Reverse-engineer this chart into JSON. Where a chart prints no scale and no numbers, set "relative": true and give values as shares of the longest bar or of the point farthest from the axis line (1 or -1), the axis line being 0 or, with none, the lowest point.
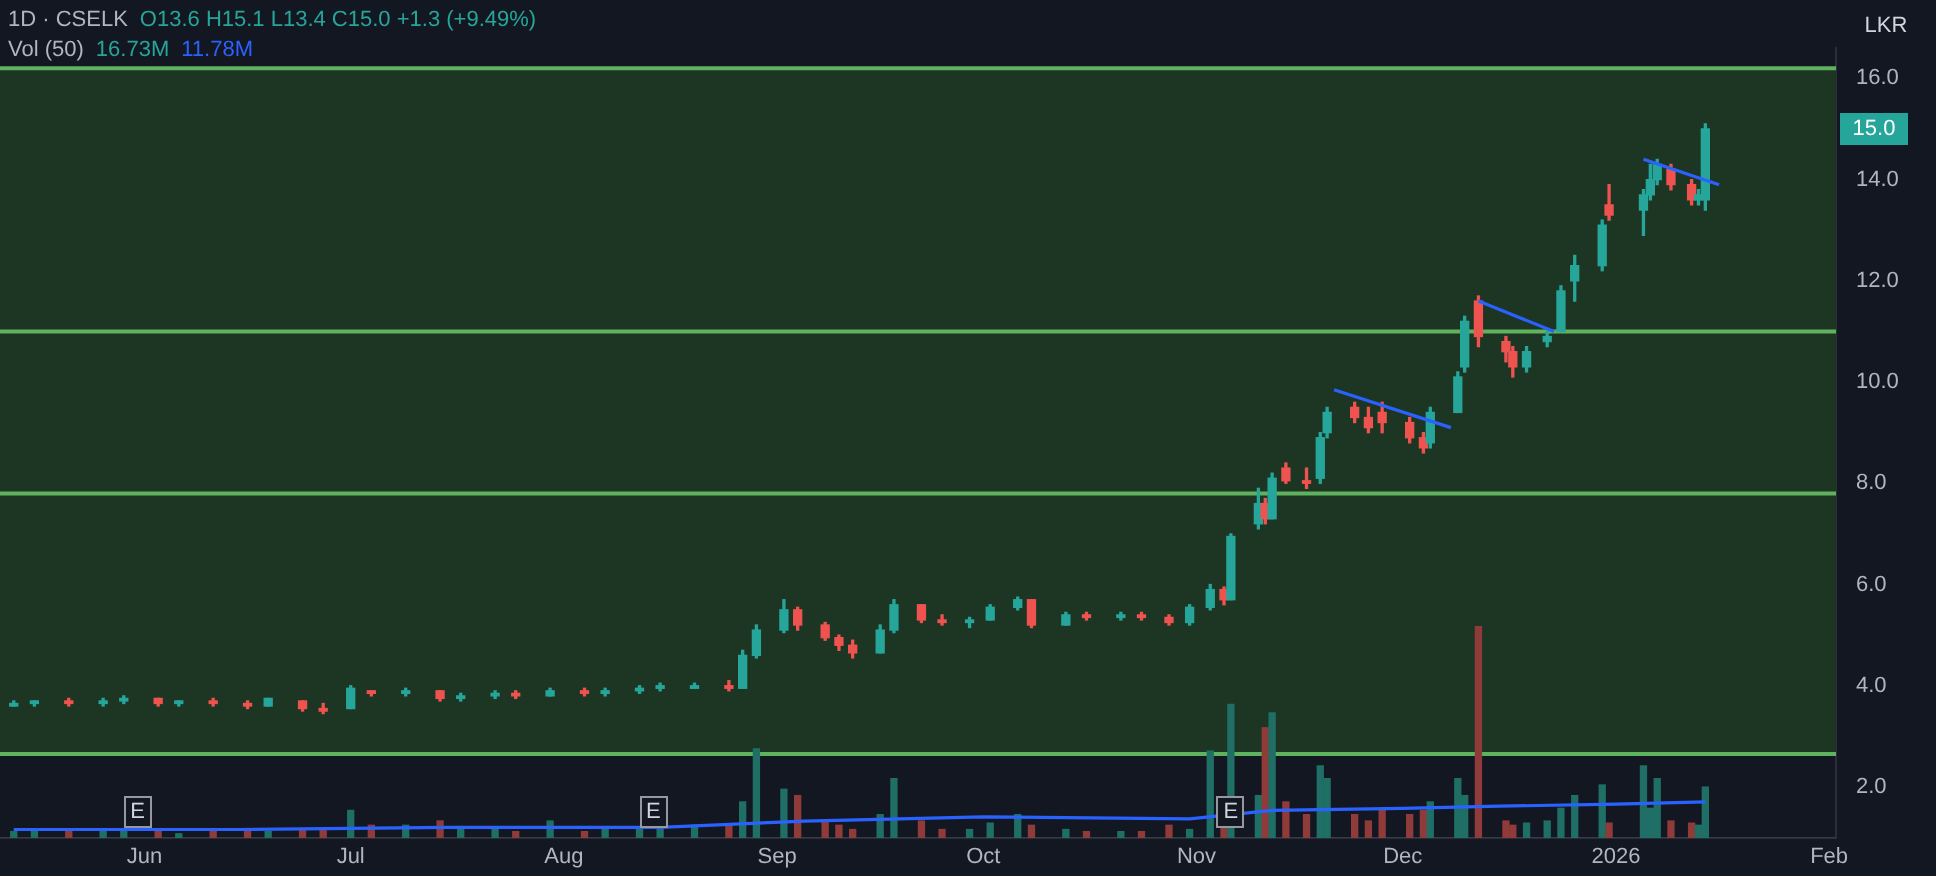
{
  "chart_data": [
    {
      "type": "candlestick",
      "title": "1D · CSELK",
      "subtitle": "O13.6 H15.1 L13.4 C15.0 +1.3 (+9.49%)",
      "ylabel": "LKR",
      "annotations": [
        {
          "text": "E",
          "x": "2025-05-31",
          "y": 1.5
        },
        {
          "text": "E",
          "x": "2025-08-14",
          "y": 1.5
        },
        {
          "text": "E",
          "x": "2025-11-06",
          "y": 1.5
        },
        {
          "text": "15.0",
          "y": 15.0
        }
      ],
      "x": [
        "2025-05-13",
        "2025-05-16",
        "2025-05-21",
        "2025-05-26",
        "2025-05-29",
        "2025-06-03",
        "2025-06-06",
        "2025-06-11",
        "2025-06-16",
        "2025-06-19",
        "2025-06-24",
        "2025-06-27",
        "2025-07-01",
        "2025-07-04",
        "2025-07-09",
        "2025-07-14",
        "2025-07-17",
        "2025-07-22",
        "2025-07-25",
        "2025-07-30",
        "2025-08-04",
        "2025-08-07",
        "2025-08-12",
        "2025-08-15",
        "2025-08-20",
        "2025-08-25",
        "2025-08-27",
        "2025-08-29",
        "2025-09-02",
        "2025-09-04",
        "2025-09-08",
        "2025-09-10",
        "2025-09-12",
        "2025-09-16",
        "2025-09-18",
        "2025-09-22",
        "2025-09-25",
        "2025-09-29",
        "2025-10-02",
        "2025-10-06",
        "2025-10-08",
        "2025-10-13",
        "2025-10-16",
        "2025-10-21",
        "2025-10-24",
        "2025-10-28",
        "2025-10-31",
        "2025-11-03",
        "2025-11-05",
        "2025-11-06",
        "2025-11-10",
        "2025-11-11",
        "2025-11-12",
        "2025-11-14",
        "2025-11-17",
        "2025-11-19",
        "2025-11-20",
        "2025-11-24",
        "2025-11-26",
        "2025-11-28",
        "2025-12-02",
        "2025-12-04",
        "2025-12-05",
        "2025-12-09",
        "2025-12-10",
        "2025-12-12",
        "2025-12-16",
        "2025-12-17",
        "2025-12-19",
        "2025-12-22",
        "2025-12-24",
        "2025-12-26",
        "2025-12-30",
        "2025-12-31",
        "2026-01-05",
        "2026-01-06",
        "2026-01-07",
        "2026-01-09",
        "2026-01-12",
        "2026-01-13",
        "2026-01-14"
      ],
      "series": [
        {
          "type": "candlestick",
          "ohlc": [
            [
              3.6,
              3.7,
              3.6,
              3.65
            ],
            [
              3.65,
              3.7,
              3.6,
              3.7
            ],
            [
              3.7,
              3.75,
              3.6,
              3.65
            ],
            [
              3.65,
              3.75,
              3.6,
              3.7
            ],
            [
              3.7,
              3.8,
              3.65,
              3.75
            ],
            [
              3.75,
              3.75,
              3.6,
              3.65
            ],
            [
              3.65,
              3.7,
              3.6,
              3.7
            ],
            [
              3.7,
              3.75,
              3.6,
              3.65
            ],
            [
              3.65,
              3.7,
              3.55,
              3.6
            ],
            [
              3.6,
              3.75,
              3.6,
              3.75
            ],
            [
              3.7,
              3.7,
              3.5,
              3.55
            ],
            [
              3.55,
              3.65,
              3.45,
              3.5
            ],
            [
              3.55,
              4.0,
              3.55,
              3.95
            ],
            [
              3.9,
              3.9,
              3.8,
              3.85
            ],
            [
              3.85,
              3.95,
              3.8,
              3.9
            ],
            [
              3.9,
              3.9,
              3.7,
              3.75
            ],
            [
              3.75,
              3.85,
              3.7,
              3.8
            ],
            [
              3.8,
              3.9,
              3.75,
              3.85
            ],
            [
              3.85,
              3.9,
              3.75,
              3.8
            ],
            [
              3.8,
              3.95,
              3.8,
              3.9
            ],
            [
              3.9,
              3.95,
              3.8,
              3.85
            ],
            [
              3.85,
              3.95,
              3.8,
              3.9
            ],
            [
              3.9,
              4.0,
              3.85,
              3.95
            ],
            [
              3.95,
              4.05,
              3.9,
              4.0
            ],
            [
              3.95,
              4.05,
              3.95,
              4.0
            ],
            [
              4.0,
              4.1,
              3.9,
              3.95
            ],
            [
              3.95,
              4.7,
              3.95,
              4.6
            ],
            [
              4.6,
              5.2,
              4.55,
              5.1
            ],
            [
              5.1,
              5.7,
              5.05,
              5.5
            ],
            [
              5.5,
              5.55,
              5.1,
              5.2
            ],
            [
              5.2,
              5.25,
              4.9,
              4.95
            ],
            [
              4.95,
              5.0,
              4.7,
              4.8
            ],
            [
              4.8,
              4.9,
              4.55,
              4.65
            ],
            [
              4.65,
              5.2,
              4.65,
              5.1
            ],
            [
              5.1,
              5.7,
              5.05,
              5.6
            ],
            [
              5.6,
              5.6,
              5.25,
              5.3
            ],
            [
              5.3,
              5.4,
              5.2,
              5.25
            ],
            [
              5.25,
              5.35,
              5.15,
              5.3
            ],
            [
              5.3,
              5.6,
              5.3,
              5.55
            ],
            [
              5.55,
              5.75,
              5.5,
              5.7
            ],
            [
              5.7,
              5.7,
              5.15,
              5.2
            ],
            [
              5.2,
              5.45,
              5.2,
              5.4
            ],
            [
              5.4,
              5.45,
              5.3,
              5.35
            ],
            [
              5.35,
              5.45,
              5.3,
              5.4
            ],
            [
              5.4,
              5.45,
              5.3,
              5.35
            ],
            [
              5.35,
              5.4,
              5.2,
              5.25
            ],
            [
              5.25,
              5.6,
              5.2,
              5.55
            ],
            [
              5.55,
              6.0,
              5.5,
              5.9
            ],
            [
              5.9,
              5.95,
              5.6,
              5.7
            ],
            [
              5.7,
              7.0,
              5.7,
              6.95
            ],
            [
              7.2,
              7.9,
              7.1,
              7.6
            ],
            [
              7.6,
              7.7,
              7.2,
              7.3
            ],
            [
              7.3,
              8.2,
              7.3,
              8.1
            ],
            [
              8.3,
              8.4,
              8.0,
              8.05
            ],
            [
              8.05,
              8.3,
              7.9,
              8.0
            ],
            [
              8.1,
              9.0,
              8.0,
              8.9
            ],
            [
              9.0,
              9.5,
              8.9,
              9.4
            ],
            [
              9.5,
              9.6,
              9.2,
              9.3
            ],
            [
              9.3,
              9.5,
              9.0,
              9.1
            ],
            [
              9.4,
              9.6,
              9.0,
              9.2
            ],
            [
              9.2,
              9.3,
              8.8,
              8.9
            ],
            [
              8.9,
              9.0,
              8.6,
              8.7
            ],
            [
              8.8,
              9.5,
              8.7,
              9.4
            ],
            [
              9.4,
              10.2,
              9.4,
              10.1
            ],
            [
              10.3,
              11.3,
              10.2,
              11.2
            ],
            [
              11.6,
              11.7,
              10.7,
              10.9
            ],
            [
              10.8,
              10.9,
              10.4,
              10.6
            ],
            [
              10.6,
              10.7,
              10.1,
              10.3
            ],
            [
              10.3,
              10.7,
              10.2,
              10.6
            ],
            [
              10.8,
              11.0,
              10.7,
              10.9
            ],
            [
              11.0,
              11.9,
              11.0,
              11.8
            ],
            [
              12.0,
              12.5,
              11.6,
              12.3
            ],
            [
              12.3,
              13.2,
              12.2,
              13.1
            ],
            [
              13.5,
              13.9,
              13.2,
              13.3
            ],
            [
              13.4,
              13.8,
              12.9,
              13.7
            ],
            [
              13.7,
              14.3,
              13.6,
              14.0
            ],
            [
              14.0,
              14.4,
              13.9,
              14.3
            ],
            [
              14.2,
              14.3,
              13.8,
              13.9
            ],
            [
              13.9,
              14.0,
              13.5,
              13.6
            ],
            [
              13.6,
              13.8,
              13.5,
              13.7
            ],
            [
              13.6,
              15.1,
              13.4,
              15.0
            ]
          ],
          "colors": [
            "#26a69a",
            "#26a69a",
            "#ef5350",
            "#26a69a",
            "#26a69a",
            "#ef5350",
            "#26a69a",
            "#ef5350",
            "#ef5350",
            "#26a69a",
            "#ef5350",
            "#ef5350",
            "#26a69a",
            "#ef5350",
            "#26a69a",
            "#ef5350",
            "#26a69a",
            "#26a69a",
            "#ef5350",
            "#26a69a",
            "#ef5350",
            "#26a69a",
            "#26a69a",
            "#26a69a",
            "#26a69a",
            "#ef5350",
            "#26a69a",
            "#26a69a",
            "#26a69a",
            "#ef5350",
            "#ef5350",
            "#ef5350",
            "#ef5350",
            "#26a69a",
            "#26a69a",
            "#ef5350",
            "#ef5350",
            "#26a69a",
            "#26a69a",
            "#26a69a",
            "#ef5350",
            "#26a69a",
            "#ef5350",
            "#26a69a",
            "#ef5350",
            "#ef5350",
            "#26a69a",
            "#26a69a",
            "#ef5350",
            "#26a69a",
            "#26a69a",
            "#ef5350",
            "#26a69a",
            "#ef5350",
            "#ef5350",
            "#26a69a",
            "#26a69a",
            "#ef5350",
            "#ef5350",
            "#ef5350",
            "#ef5350",
            "#ef5350",
            "#26a69a",
            "#26a69a",
            "#26a69a",
            "#ef5350",
            "#ef5350",
            "#ef5350",
            "#26a69a",
            "#26a69a",
            "#26a69a",
            "#26a69a",
            "#26a69a",
            "#ef5350",
            "#26a69a",
            "#26a69a",
            "#26a69a",
            "#ef5350",
            "#ef5350",
            "#26a69a",
            "#26a69a"
          ]
        },
        {
          "type": "line",
          "color": "#2962ff",
          "x": [
            "2025-11-21",
            "2025-12-08"
          ],
          "values": [
            9.85,
            9.1
          ]
        },
        {
          "type": "line",
          "color": "#2962ff",
          "x": [
            "2025-12-12",
            "2025-12-23"
          ],
          "values": [
            11.6,
            11.0
          ]
        },
        {
          "type": "line",
          "color": "#2962ff",
          "x": [
            "2026-01-05",
            "2026-01-16"
          ],
          "values": [
            14.4,
            13.9
          ]
        }
      ],
      "xlim": [
        "2025-05-11",
        "2026-02-02"
      ],
      "xticks": [
        {
          "value": "2025-06-01",
          "label": "Jun"
        },
        {
          "value": "2025-07-01",
          "label": "Jul"
        },
        {
          "value": "2025-08-01",
          "label": "Aug"
        },
        {
          "value": "2025-09-01",
          "label": "Sep"
        },
        {
          "value": "2025-10-01",
          "label": "Oct"
        },
        {
          "value": "2025-11-01",
          "label": "Nov"
        },
        {
          "value": "2025-12-01",
          "label": "Dec"
        },
        {
          "value": "2026-01-01",
          "label": "2026"
        },
        {
          "value": "2026-02-01",
          "label": "Feb"
        }
      ],
      "ylim": [
        1.0,
        16.6
      ],
      "yticks": [
        {
          "value": 2,
          "label": "2.0"
        },
        {
          "value": 4,
          "label": "4.0"
        },
        {
          "value": 6,
          "label": "6.0"
        },
        {
          "value": 8,
          "label": "8.0"
        },
        {
          "value": 10,
          "label": "10.0"
        },
        {
          "value": 12,
          "label": "12.0"
        },
        {
          "value": 14,
          "label": "14.0"
        },
        {
          "value": 16,
          "label": "16.0"
        }
      ],
      "bands": [
        {
          "axis": "y",
          "from": 2.65,
          "to": 16.2,
          "color": "#1d3523"
        }
      ],
      "ref_lines": [
        {
          "axis": "y",
          "value": 16.2,
          "color": "#5fb35f"
        },
        {
          "axis": "y",
          "value": 11.0,
          "color": "#5fb35f"
        },
        {
          "axis": "y",
          "value": 7.8,
          "color": "#5fb35f"
        },
        {
          "axis": "y",
          "value": 2.65,
          "color": "#5fb35f"
        }
      ],
      "grid": false
    },
    {
      "type": "bar",
      "relative": true,
      "annotations": [
        "Vol (50)",
        "16.73M",
        "11.78M"
      ],
      "x": [
        "2025-05-13",
        "2025-05-16",
        "2025-05-21",
        "2025-05-26",
        "2025-05-29",
        "2025-06-03",
        "2025-06-06",
        "2025-06-11",
        "2025-06-16",
        "2025-06-19",
        "2025-06-24",
        "2025-06-27",
        "2025-07-01",
        "2025-07-04",
        "2025-07-09",
        "2025-07-14",
        "2025-07-17",
        "2025-07-22",
        "2025-07-25",
        "2025-07-30",
        "2025-08-04",
        "2025-08-07",
        "2025-08-12",
        "2025-08-15",
        "2025-08-20",
        "2025-08-25",
        "2025-08-27",
        "2025-08-29",
        "2025-09-02",
        "2025-09-04",
        "2025-09-08",
        "2025-09-10",
        "2025-09-12",
        "2025-09-16",
        "2025-09-18",
        "2025-09-22",
        "2025-09-25",
        "2025-09-29",
        "2025-10-02",
        "2025-10-06",
        "2025-10-08",
        "2025-10-13",
        "2025-10-16",
        "2025-10-21",
        "2025-10-24",
        "2025-10-28",
        "2025-10-31",
        "2025-11-03",
        "2025-11-05",
        "2025-11-06",
        "2025-11-10",
        "2025-11-11",
        "2025-11-12",
        "2025-11-14",
        "2025-11-17",
        "2025-11-19",
        "2025-11-20",
        "2025-11-24",
        "2025-11-26",
        "2025-11-28",
        "2025-12-02",
        "2025-12-04",
        "2025-12-05",
        "2025-12-09",
        "2025-12-10",
        "2025-12-12",
        "2025-12-16",
        "2025-12-17",
        "2025-12-19",
        "2025-12-22",
        "2025-12-24",
        "2025-12-26",
        "2025-12-30",
        "2025-12-31",
        "2026-01-05",
        "2026-01-06",
        "2026-01-07",
        "2026-01-09",
        "2026-01-12",
        "2026-01-13",
        "2026-01-14"
      ],
      "series": [
        {
          "type": "bar",
          "values": [
            0.03,
            0.03,
            0.03,
            0.03,
            0.035,
            0.03,
            0.02,
            0.03,
            0.03,
            0.03,
            0.04,
            0.04,
            0.13,
            0.06,
            0.06,
            0.08,
            0.04,
            0.04,
            0.03,
            0.08,
            0.03,
            0.04,
            0.04,
            0.07,
            0.06,
            0.06,
            0.17,
            0.42,
            0.23,
            0.2,
            0.08,
            0.06,
            0.04,
            0.11,
            0.28,
            0.08,
            0.04,
            0.04,
            0.07,
            0.11,
            0.06,
            0.04,
            0.03,
            0.03,
            0.03,
            0.06,
            0.04,
            0.41,
            0.07,
            0.63,
            0.2,
            0.52,
            0.59,
            0.17,
            0.11,
            0.34,
            0.28,
            0.11,
            0.08,
            0.14,
            0.11,
            0.13,
            0.17,
            0.28,
            0.2,
            1,
            0.08,
            0.06,
            0.07,
            0.08,
            0.14,
            0.2,
            0.25,
            0.07,
            0.34,
            0.14,
            0.28,
            0.08,
            0.07,
            0.06,
            0.24
          ],
          "colors": [
            "#1f6f67",
            "#1f6f67",
            "#8f3b3a",
            "#1f6f67",
            "#1f6f67",
            "#8f3b3a",
            "#1f6f67",
            "#8f3b3a",
            "#8f3b3a",
            "#1f6f67",
            "#8f3b3a",
            "#8f3b3a",
            "#1f6f67",
            "#8f3b3a",
            "#1f6f67",
            "#8f3b3a",
            "#1f6f67",
            "#1f6f67",
            "#8f3b3a",
            "#1f6f67",
            "#8f3b3a",
            "#1f6f67",
            "#1f6f67",
            "#1f6f67",
            "#1f6f67",
            "#8f3b3a",
            "#1f6f67",
            "#1f6f67",
            "#1f6f67",
            "#8f3b3a",
            "#8f3b3a",
            "#8f3b3a",
            "#8f3b3a",
            "#1f6f67",
            "#1f6f67",
            "#8f3b3a",
            "#8f3b3a",
            "#1f6f67",
            "#1f6f67",
            "#1f6f67",
            "#8f3b3a",
            "#1f6f67",
            "#8f3b3a",
            "#1f6f67",
            "#8f3b3a",
            "#8f3b3a",
            "#1f6f67",
            "#1f6f67",
            "#8f3b3a",
            "#1f6f67",
            "#1f6f67",
            "#8f3b3a",
            "#1f6f67",
            "#8f3b3a",
            "#8f3b3a",
            "#1f6f67",
            "#1f6f67",
            "#8f3b3a",
            "#8f3b3a",
            "#8f3b3a",
            "#8f3b3a",
            "#8f3b3a",
            "#1f6f67",
            "#1f6f67",
            "#1f6f67",
            "#8f3b3a",
            "#8f3b3a",
            "#8f3b3a",
            "#1f6f67",
            "#1f6f67",
            "#1f6f67",
            "#1f6f67",
            "#1f6f67",
            "#8f3b3a",
            "#1f6f67",
            "#1f6f67",
            "#1f6f67",
            "#8f3b3a",
            "#8f3b3a",
            "#1f6f67",
            "#1f6f67"
          ]
        },
        {
          "type": "line",
          "color": "#2962ff",
          "x": [
            "2025-05-13",
            "2025-06-15",
            "2025-07-15",
            "2025-08-15",
            "2025-09-05",
            "2025-10-01",
            "2025-10-31",
            "2025-11-12",
            "2025-12-01",
            "2025-12-15",
            "2026-01-01",
            "2026-01-14"
          ],
          "values": [
            0.04,
            0.04,
            0.05,
            0.05,
            0.08,
            0.1,
            0.09,
            0.13,
            0.14,
            0.15,
            0.16,
            0.17
          ]
        }
      ],
      "xlim": [
        "2025-05-11",
        "2026-02-02"
      ]
    }
  ]
}
